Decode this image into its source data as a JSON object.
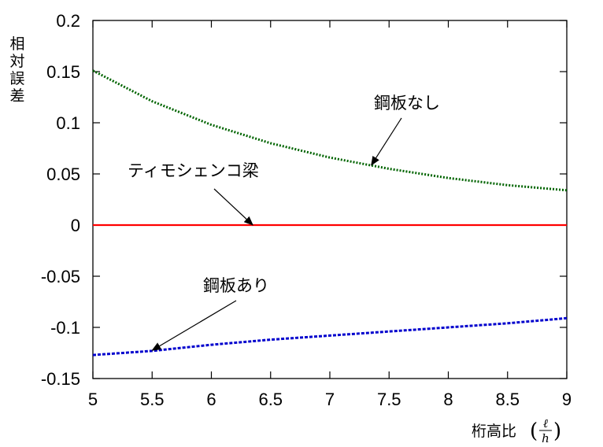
{
  "chart_data": {
    "type": "line",
    "title": "",
    "xlabel": {
      "text": "桁高比",
      "ratio_numerator": "ℓ",
      "ratio_denominator": "h"
    },
    "ylabel": [
      "相",
      "対",
      "誤",
      "差"
    ],
    "xlim": [
      5,
      9
    ],
    "ylim": [
      -0.15,
      0.2
    ],
    "x_ticks": [
      "5",
      "5.5",
      "6",
      "6.5",
      "7",
      "7.5",
      "8",
      "8.5",
      "9"
    ],
    "y_ticks": [
      "0.2",
      "0.15",
      "0.1",
      "0.05",
      "0",
      "-0.05",
      "-0.1",
      "-0.15"
    ],
    "grid": false,
    "series": [
      {
        "name": "鋼板なし",
        "color": "#006400",
        "style": "dotted",
        "x": [
          5.0,
          5.5,
          6.0,
          6.5,
          7.0,
          7.5,
          8.0,
          8.5,
          9.0
        ],
        "y": [
          0.151,
          0.121,
          0.098,
          0.08,
          0.066,
          0.055,
          0.046,
          0.039,
          0.034
        ]
      },
      {
        "name": "ティモシェンコ梁",
        "color": "#ff0000",
        "style": "solid",
        "x": [
          5.0,
          9.0
        ],
        "y": [
          0.0,
          0.0
        ]
      },
      {
        "name": "鋼板あり",
        "color": "#0000cd",
        "style": "dashed",
        "x": [
          5.0,
          5.5,
          6.0,
          6.5,
          7.0,
          7.5,
          8.0,
          8.5,
          9.0
        ],
        "y": [
          -0.127,
          -0.123,
          -0.117,
          -0.112,
          -0.108,
          -0.104,
          -0.1,
          -0.096,
          -0.091
        ]
      }
    ],
    "annotations": [
      {
        "text": "鋼板なし",
        "series": "鋼板なし",
        "point": [
          7.35,
          0.0585
        ]
      },
      {
        "text": "ティモシェンコ梁",
        "series": "ティモシェンコ梁",
        "point": [
          6.35,
          0.0
        ]
      },
      {
        "text": "鋼板あり",
        "series": "鋼板あり",
        "point": [
          5.5,
          -0.1225
        ]
      }
    ]
  }
}
